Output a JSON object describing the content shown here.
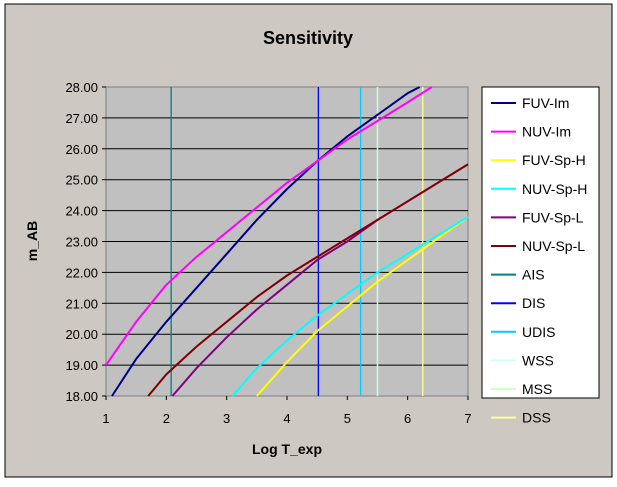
{
  "chart_data": {
    "type": "line",
    "title": "Sensitivity",
    "xlabel": "Log T_exp",
    "ylabel": "m_AB",
    "xlim": [
      1,
      7
    ],
    "ylim": [
      18,
      28
    ],
    "x_ticks": [
      "1",
      "2",
      "3",
      "4",
      "5",
      "6",
      "7"
    ],
    "y_ticks": [
      "18.00",
      "19.00",
      "20.00",
      "21.00",
      "22.00",
      "23.00",
      "24.00",
      "25.00",
      "26.00",
      "27.00",
      "28.00"
    ],
    "grid": "horizontal",
    "legend_position": "right",
    "series": [
      {
        "name": "FUV-Im",
        "color": "#000080",
        "x": [
          1.1,
          1.5,
          2.0,
          2.5,
          3.0,
          3.5,
          4.0,
          4.5,
          5.0,
          5.5,
          6.0,
          6.2
        ],
        "y": [
          18.0,
          19.2,
          20.4,
          21.5,
          22.6,
          23.7,
          24.7,
          25.6,
          26.4,
          27.1,
          27.8,
          28.0
        ]
      },
      {
        "name": "NUV-Im",
        "color": "#FF00FF",
        "x": [
          1.0,
          1.5,
          2.0,
          2.5,
          3.0,
          3.5,
          4.0,
          4.5,
          5.0,
          5.5,
          6.0,
          6.4
        ],
        "y": [
          19.0,
          20.4,
          21.6,
          22.5,
          23.3,
          24.1,
          24.9,
          25.6,
          26.3,
          26.9,
          27.5,
          28.0
        ]
      },
      {
        "name": "FUV-Sp-H",
        "color": "#FFFF00",
        "x": [
          3.5,
          4.0,
          4.5,
          5.0,
          5.5,
          6.0,
          6.5,
          7.0
        ],
        "y": [
          18.0,
          19.1,
          20.1,
          20.9,
          21.7,
          22.4,
          23.1,
          23.8
        ]
      },
      {
        "name": "NUV-Sp-H",
        "color": "#00FFFF",
        "x": [
          3.1,
          3.5,
          4.0,
          4.5,
          5.0,
          5.5,
          6.0,
          6.5,
          7.0
        ],
        "y": [
          18.0,
          18.9,
          19.8,
          20.6,
          21.3,
          22.0,
          22.6,
          23.2,
          23.8
        ]
      },
      {
        "name": "FUV-Sp-L",
        "color": "#800080",
        "x": [
          2.1,
          2.5,
          3.0,
          3.5,
          4.0,
          4.5,
          5.0,
          5.5,
          6.0,
          6.5,
          7.0
        ],
        "y": [
          18.0,
          18.9,
          19.9,
          20.8,
          21.6,
          22.4,
          23.0,
          23.7,
          24.3,
          24.9,
          25.5
        ]
      },
      {
        "name": "NUV-Sp-L",
        "color": "#800000",
        "x": [
          1.7,
          2.0,
          2.5,
          3.0,
          3.5,
          4.0,
          4.5,
          5.0,
          5.5,
          6.0,
          6.5,
          7.0
        ],
        "y": [
          18.0,
          18.7,
          19.6,
          20.4,
          21.2,
          21.9,
          22.5,
          23.1,
          23.7,
          24.3,
          24.9,
          25.5
        ]
      },
      {
        "name": "AIS",
        "color": "#008080",
        "vline": 2.08
      },
      {
        "name": "DIS",
        "color": "#0000FF",
        "vline": 4.52
      },
      {
        "name": "UDIS",
        "color": "#00CCFF",
        "vline": 5.22
      },
      {
        "name": "WSS",
        "color": "#CCFFFF",
        "vline": 5.5
      },
      {
        "name": "MSS",
        "color": "#CCFFCC",
        "vline": 5.5
      },
      {
        "name": "DSS",
        "color": "#FFFF99",
        "vline": 6.25
      }
    ]
  }
}
